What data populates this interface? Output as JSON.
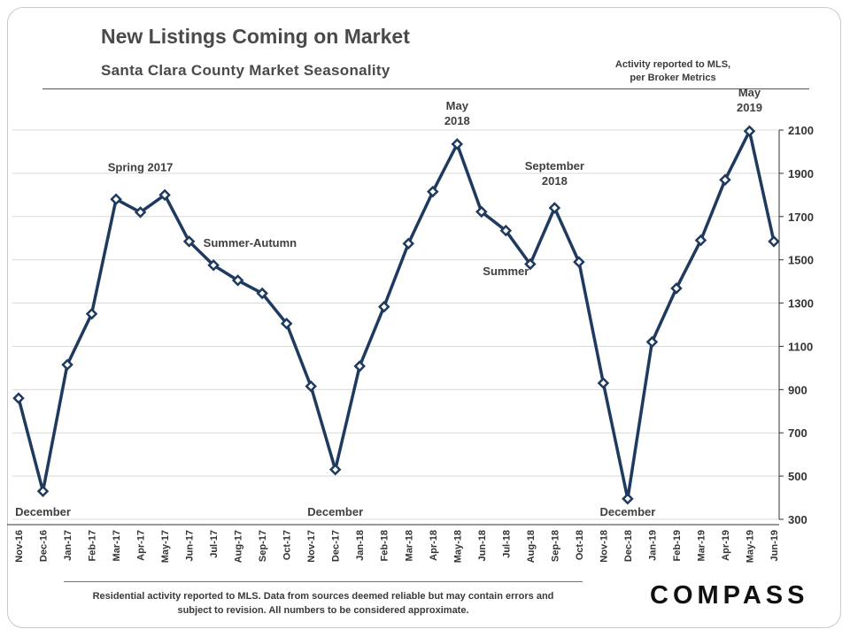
{
  "header": {
    "title": "New Listings Coming on Market",
    "subtitle": "Santa Clara County Market Seasonality",
    "source_line1": "Activity reported to MLS,",
    "source_line2": "per Broker Metrics"
  },
  "footer": {
    "note_line1": "Residential activity reported to MLS. Data from sources deemed reliable but may contain errors and",
    "note_line2": "subject to revision. All numbers to be considered approximate.",
    "logo_text": "COMPASS"
  },
  "colors": {
    "line": "#1f3a5f",
    "grid": "#d9d9d9",
    "marker_fill": "#ffffff"
  },
  "chart_data": {
    "type": "line",
    "title": "New Listings Coming on Market",
    "subtitle": "Santa Clara County Market Seasonality",
    "categories": [
      "Nov-16",
      "Dec-16",
      "Jan-17",
      "Feb-17",
      "Mar-17",
      "Apr-17",
      "May-17",
      "Jun-17",
      "Jul-17",
      "Aug-17",
      "Sep-17",
      "Oct-17",
      "Nov-17",
      "Dec-17",
      "Jan-18",
      "Feb-18",
      "Mar-18",
      "Apr-18",
      "May-18",
      "Jun-18",
      "Jul-18",
      "Aug-18",
      "Sep-18",
      "Oct-18",
      "Nov-18",
      "Dec-18",
      "Jan-19",
      "Feb-19",
      "Mar-19",
      "Apr-19",
      "May-19",
      "Jun-19"
    ],
    "values": [
      860,
      430,
      1015,
      1250,
      1780,
      1720,
      1800,
      1585,
      1475,
      1405,
      1345,
      1205,
      915,
      530,
      1008,
      1283,
      1575,
      1815,
      2035,
      1722,
      1635,
      1480,
      1740,
      1490,
      930,
      395,
      1120,
      1368,
      1590,
      1870,
      2095,
      1585
    ],
    "ylim": [
      300,
      2100
    ],
    "yticks": [
      300,
      500,
      700,
      900,
      1100,
      1300,
      1500,
      1700,
      1900,
      2100
    ],
    "y_axis_side": "right",
    "grid": true,
    "annotations": [
      {
        "lines": [
          "December"
        ],
        "index": 1,
        "value": 300,
        "dy": 0
      },
      {
        "lines": [
          "Spring 2017"
        ],
        "index": 5,
        "value": 1910,
        "dy": 0
      },
      {
        "lines": [
          "Summer-Autumn"
        ],
        "index": 9.5,
        "value": 1560,
        "dy": 0
      },
      {
        "lines": [
          "December"
        ],
        "index": 13,
        "value": 300,
        "dy": 0
      },
      {
        "lines": [
          "May",
          "2018"
        ],
        "index": 18,
        "value": 2195,
        "dy": 0
      },
      {
        "lines": [
          "September",
          "2018"
        ],
        "index": 22,
        "value": 1915,
        "dy": 0
      },
      {
        "lines": [
          "Summer"
        ],
        "index": 20,
        "value": 1430,
        "dy": 0
      },
      {
        "lines": [
          "December"
        ],
        "index": 25,
        "value": 300,
        "dy": 0
      },
      {
        "lines": [
          "May",
          "2019"
        ],
        "index": 30,
        "value": 2255,
        "dy": 0
      }
    ]
  }
}
